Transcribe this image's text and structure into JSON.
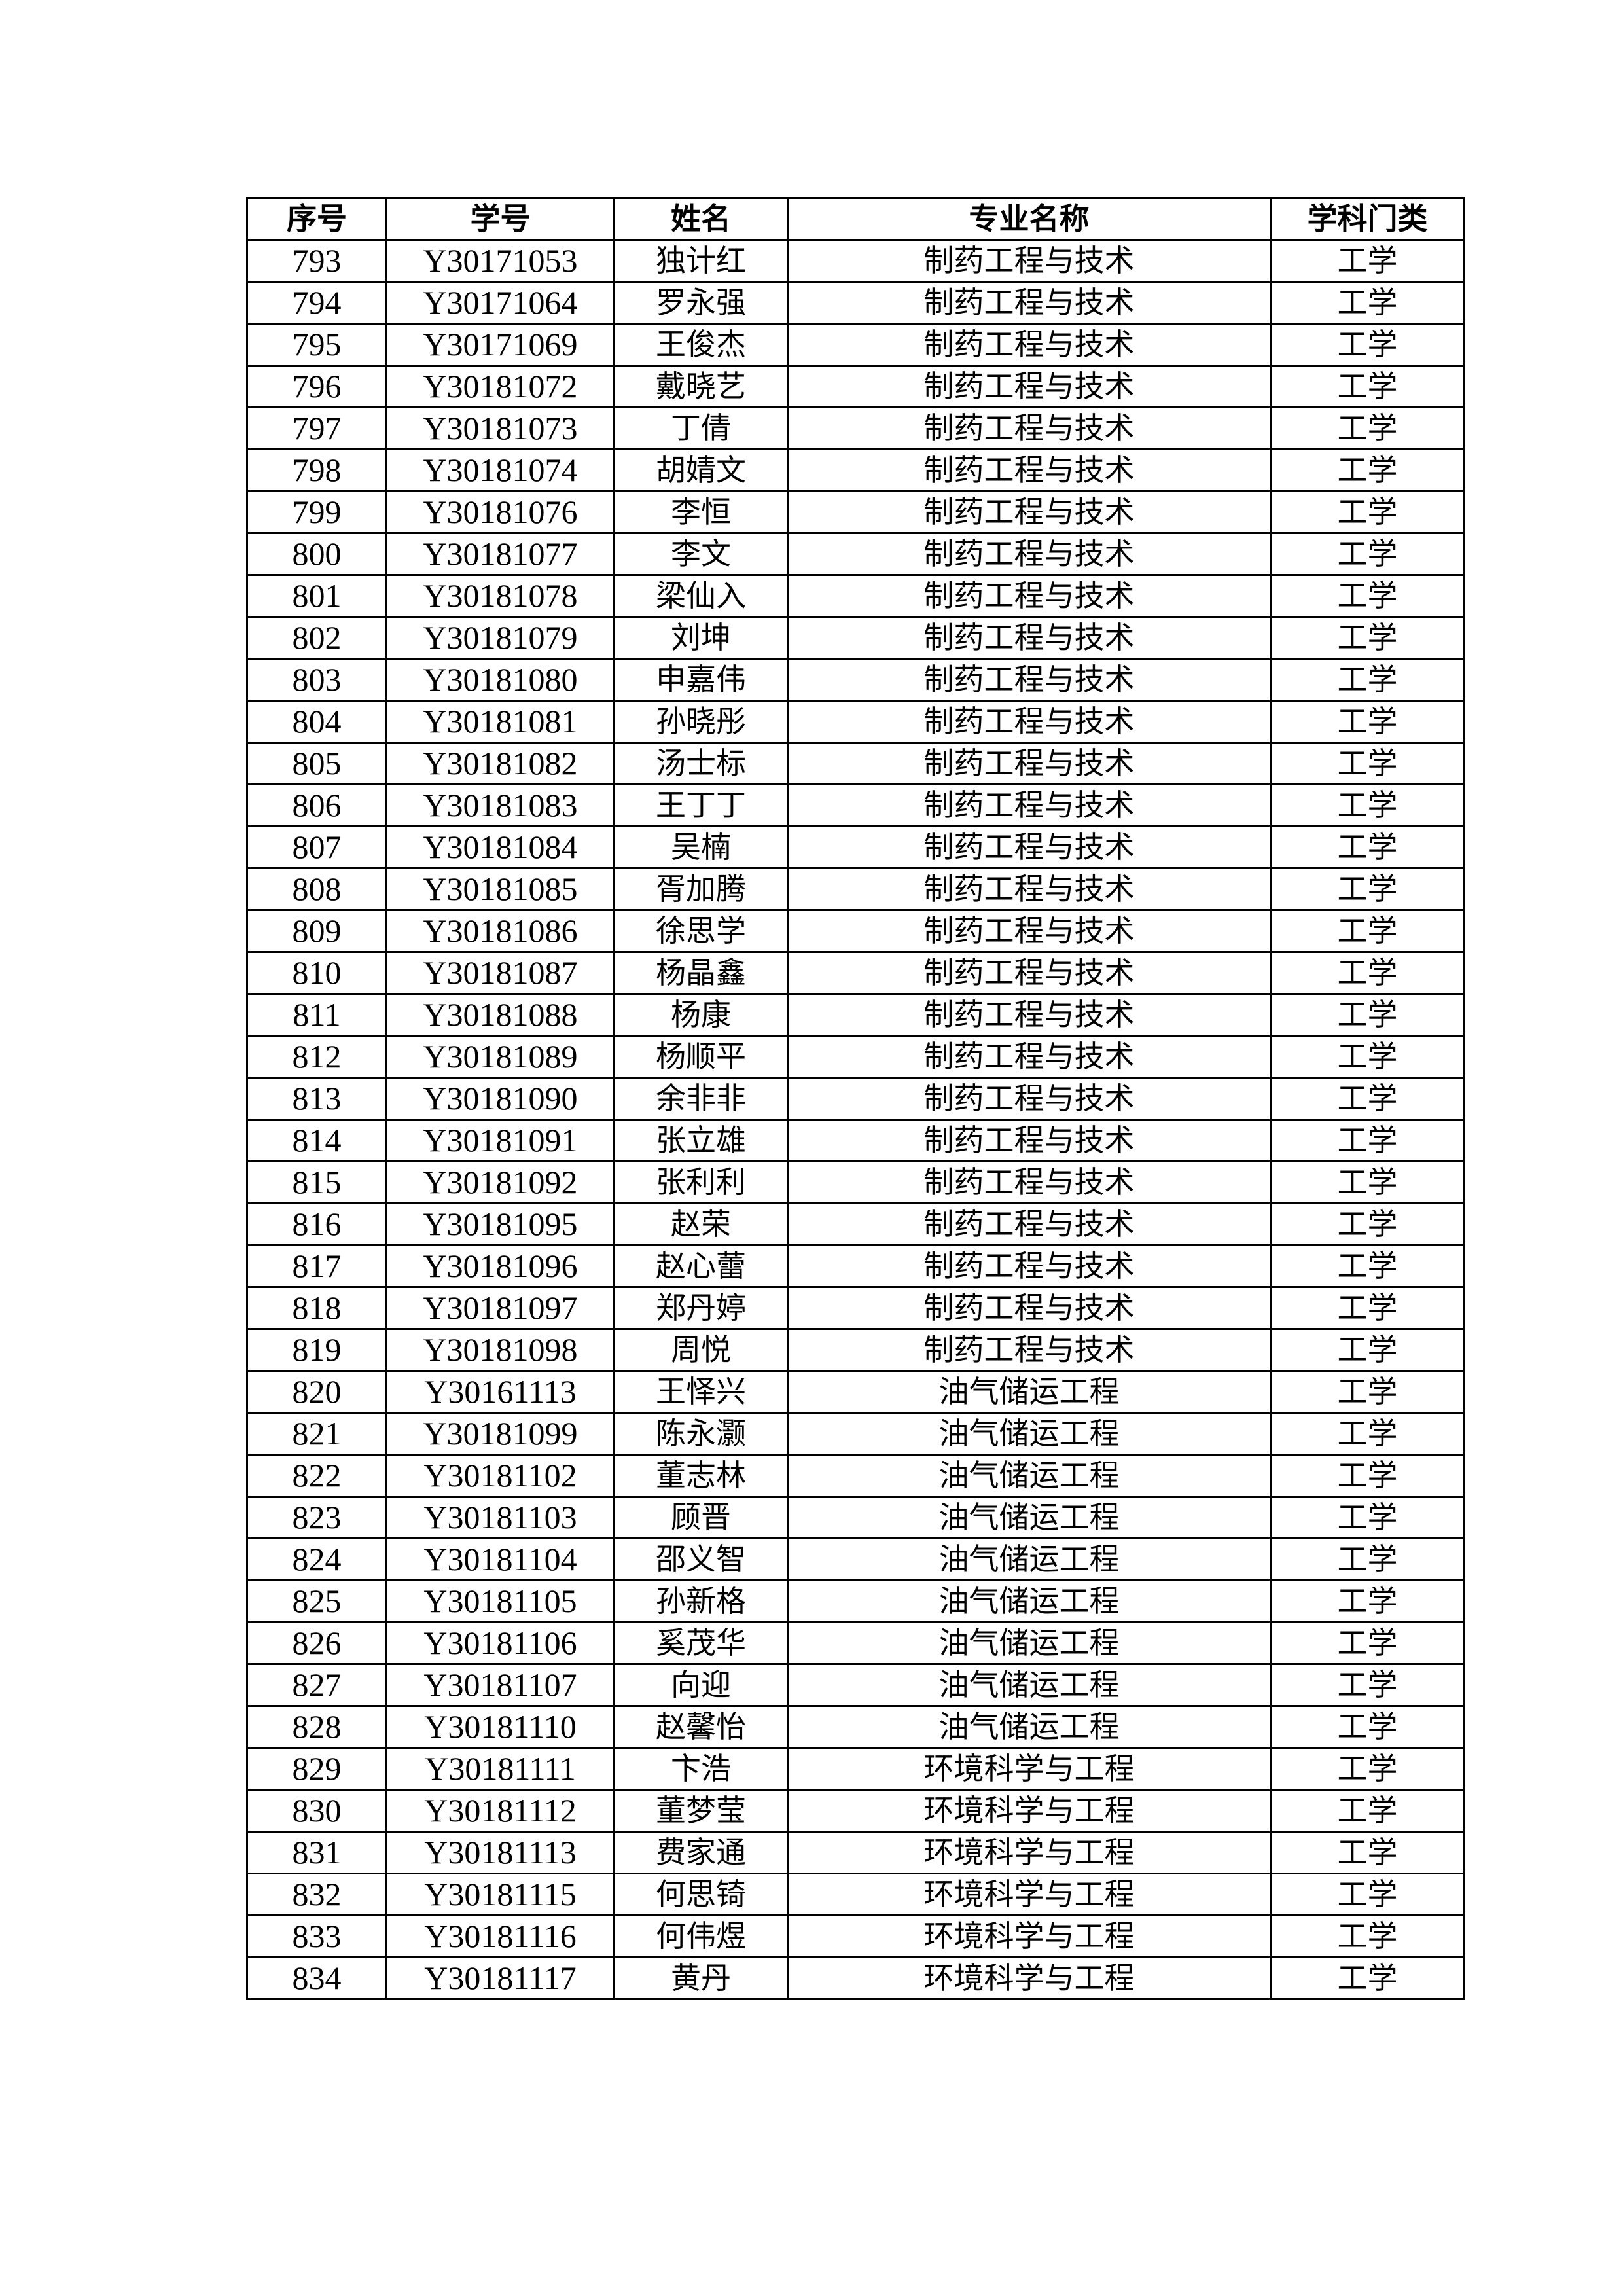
{
  "table": {
    "headers": [
      "序号",
      "学号",
      "姓名",
      "专业名称",
      "学科门类"
    ],
    "rows": [
      [
        "793",
        "Y30171053",
        "独计红",
        "制药工程与技术",
        "工学"
      ],
      [
        "794",
        "Y30171064",
        "罗永强",
        "制药工程与技术",
        "工学"
      ],
      [
        "795",
        "Y30171069",
        "王俊杰",
        "制药工程与技术",
        "工学"
      ],
      [
        "796",
        "Y30181072",
        "戴晓艺",
        "制药工程与技术",
        "工学"
      ],
      [
        "797",
        "Y30181073",
        "丁倩",
        "制药工程与技术",
        "工学"
      ],
      [
        "798",
        "Y30181074",
        "胡婧文",
        "制药工程与技术",
        "工学"
      ],
      [
        "799",
        "Y30181076",
        "李恒",
        "制药工程与技术",
        "工学"
      ],
      [
        "800",
        "Y30181077",
        "李文",
        "制药工程与技术",
        "工学"
      ],
      [
        "801",
        "Y30181078",
        "梁仙入",
        "制药工程与技术",
        "工学"
      ],
      [
        "802",
        "Y30181079",
        "刘坤",
        "制药工程与技术",
        "工学"
      ],
      [
        "803",
        "Y30181080",
        "申嘉伟",
        "制药工程与技术",
        "工学"
      ],
      [
        "804",
        "Y30181081",
        "孙晓彤",
        "制药工程与技术",
        "工学"
      ],
      [
        "805",
        "Y30181082",
        "汤士标",
        "制药工程与技术",
        "工学"
      ],
      [
        "806",
        "Y30181083",
        "王丁丁",
        "制药工程与技术",
        "工学"
      ],
      [
        "807",
        "Y30181084",
        "吴楠",
        "制药工程与技术",
        "工学"
      ],
      [
        "808",
        "Y30181085",
        "胥加腾",
        "制药工程与技术",
        "工学"
      ],
      [
        "809",
        "Y30181086",
        "徐思学",
        "制药工程与技术",
        "工学"
      ],
      [
        "810",
        "Y30181087",
        "杨晶鑫",
        "制药工程与技术",
        "工学"
      ],
      [
        "811",
        "Y30181088",
        "杨康",
        "制药工程与技术",
        "工学"
      ],
      [
        "812",
        "Y30181089",
        "杨顺平",
        "制药工程与技术",
        "工学"
      ],
      [
        "813",
        "Y30181090",
        "余非非",
        "制药工程与技术",
        "工学"
      ],
      [
        "814",
        "Y30181091",
        "张立雄",
        "制药工程与技术",
        "工学"
      ],
      [
        "815",
        "Y30181092",
        "张利利",
        "制药工程与技术",
        "工学"
      ],
      [
        "816",
        "Y30181095",
        "赵荣",
        "制药工程与技术",
        "工学"
      ],
      [
        "817",
        "Y30181096",
        "赵心蕾",
        "制药工程与技术",
        "工学"
      ],
      [
        "818",
        "Y30181097",
        "郑丹婷",
        "制药工程与技术",
        "工学"
      ],
      [
        "819",
        "Y30181098",
        "周悦",
        "制药工程与技术",
        "工学"
      ],
      [
        "820",
        "Y30161113",
        "王怿兴",
        "油气储运工程",
        "工学"
      ],
      [
        "821",
        "Y30181099",
        "陈永灏",
        "油气储运工程",
        "工学"
      ],
      [
        "822",
        "Y30181102",
        "董志林",
        "油气储运工程",
        "工学"
      ],
      [
        "823",
        "Y30181103",
        "顾晋",
        "油气储运工程",
        "工学"
      ],
      [
        "824",
        "Y30181104",
        "邵义智",
        "油气储运工程",
        "工学"
      ],
      [
        "825",
        "Y30181105",
        "孙新格",
        "油气储运工程",
        "工学"
      ],
      [
        "826",
        "Y30181106",
        "奚茂华",
        "油气储运工程",
        "工学"
      ],
      [
        "827",
        "Y30181107",
        "向迎",
        "油气储运工程",
        "工学"
      ],
      [
        "828",
        "Y30181110",
        "赵馨怡",
        "油气储运工程",
        "工学"
      ],
      [
        "829",
        "Y30181111",
        "卞浩",
        "环境科学与工程",
        "工学"
      ],
      [
        "830",
        "Y30181112",
        "董梦莹",
        "环境科学与工程",
        "工学"
      ],
      [
        "831",
        "Y30181113",
        "费家通",
        "环境科学与工程",
        "工学"
      ],
      [
        "832",
        "Y30181115",
        "何思锜",
        "环境科学与工程",
        "工学"
      ],
      [
        "833",
        "Y30181116",
        "何伟煜",
        "环境科学与工程",
        "工学"
      ],
      [
        "834",
        "Y30181117",
        "黄丹",
        "环境科学与工程",
        "工学"
      ]
    ]
  }
}
